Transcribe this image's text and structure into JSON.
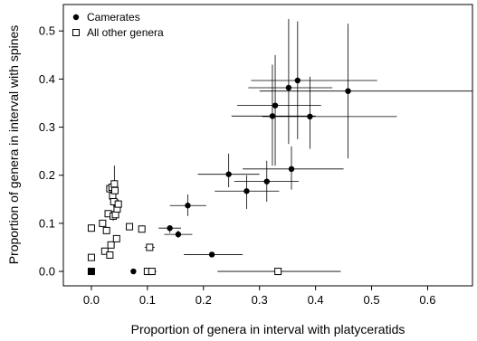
{
  "chart_data": {
    "type": "scatter",
    "xlabel": "Proportion of genera in interval with platyceratids",
    "ylabel": "Proportion of genera in interval with spines",
    "xlim": [
      -0.05,
      0.68
    ],
    "ylim": [
      -0.03,
      0.555
    ],
    "x_ticks": [
      0.0,
      0.1,
      0.2,
      0.3,
      0.4,
      0.5,
      0.6
    ],
    "x_tick_labels": [
      "0.0",
      "0.1",
      "0.2",
      "0.3",
      "0.4",
      "0.5",
      "0.6"
    ],
    "y_ticks": [
      0.0,
      0.1,
      0.2,
      0.3,
      0.4,
      0.5
    ],
    "y_tick_labels": [
      "0.0",
      "0.1",
      "0.2",
      "0.3",
      "0.4",
      "0.5"
    ],
    "grid": false,
    "legend_position": "top-left",
    "series": [
      {
        "name": "Camerates",
        "marker": "filled-circle",
        "color": "#000000",
        "points": [
          {
            "x": 0.075,
            "y": 0.0,
            "xerr": [
              0.075,
              0.075
            ],
            "yerr": [
              0.0,
              0.0
            ]
          },
          {
            "x": 0.14,
            "y": 0.09,
            "xerr": [
              0.12,
              0.16
            ],
            "yerr": [
              0.08,
              0.095
            ]
          },
          {
            "x": 0.155,
            "y": 0.077,
            "xerr": [
              0.13,
              0.18
            ],
            "yerr": [
              0.07,
              0.085
            ]
          },
          {
            "x": 0.172,
            "y": 0.137,
            "xerr": [
              0.14,
              0.205
            ],
            "yerr": [
              0.115,
              0.16
            ]
          },
          {
            "x": 0.215,
            "y": 0.035,
            "xerr": [
              0.165,
              0.27
            ],
            "yerr": [
              0.03,
              0.04
            ]
          },
          {
            "x": 0.245,
            "y": 0.202,
            "xerr": [
              0.19,
              0.3
            ],
            "yerr": [
              0.175,
              0.245
            ]
          },
          {
            "x": 0.277,
            "y": 0.167,
            "xerr": [
              0.22,
              0.335
            ],
            "yerr": [
              0.13,
              0.2
            ]
          },
          {
            "x": 0.313,
            "y": 0.187,
            "xerr": [
              0.255,
              0.37
            ],
            "yerr": [
              0.145,
              0.23
            ]
          },
          {
            "x": 0.323,
            "y": 0.323,
            "xerr": [
              0.25,
              0.4
            ],
            "yerr": [
              0.22,
              0.43
            ]
          },
          {
            "x": 0.328,
            "y": 0.345,
            "xerr": [
              0.26,
              0.41
            ],
            "yerr": [
              0.22,
              0.45
            ]
          },
          {
            "x": 0.352,
            "y": 0.382,
            "xerr": [
              0.28,
              0.43
            ],
            "yerr": [
              0.265,
              0.525
            ]
          },
          {
            "x": 0.357,
            "y": 0.213,
            "xerr": [
              0.27,
              0.45
            ],
            "yerr": [
              0.17,
              0.26
            ]
          },
          {
            "x": 0.368,
            "y": 0.397,
            "xerr": [
              0.285,
              0.51
            ],
            "yerr": [
              0.275,
              0.52
            ]
          },
          {
            "x": 0.39,
            "y": 0.322,
            "xerr": [
              0.305,
              0.545
            ],
            "yerr": [
              0.255,
              0.405
            ]
          },
          {
            "x": 0.458,
            "y": 0.375,
            "xerr": [
              0.3,
              0.68
            ],
            "yerr": [
              0.235,
              0.515
            ]
          }
        ]
      },
      {
        "name": "All other genera",
        "marker": "open-square",
        "color": "#000000",
        "points": [
          {
            "x": 0.0,
            "y": 0.0,
            "xerr": [
              0.0,
              0.0
            ],
            "yerr": [
              0.0,
              0.0
            ],
            "filled": true
          },
          {
            "x": 0.0,
            "y": 0.029,
            "xerr": [
              0.0,
              0.0
            ],
            "yerr": [
              0.025,
              0.035
            ]
          },
          {
            "x": 0.0,
            "y": 0.09,
            "xerr": [
              0.0,
              0.0
            ],
            "yerr": [
              0.085,
              0.098
            ]
          },
          {
            "x": 0.02,
            "y": 0.1,
            "xerr": [
              0.02,
              0.02
            ],
            "yerr": [
              0.095,
              0.105
            ]
          },
          {
            "x": 0.024,
            "y": 0.042,
            "xerr": [
              0.02,
              0.028
            ],
            "yerr": [
              0.038,
              0.046
            ]
          },
          {
            "x": 0.027,
            "y": 0.085,
            "xerr": [
              0.024,
              0.03
            ],
            "yerr": [
              0.08,
              0.09
            ]
          },
          {
            "x": 0.03,
            "y": 0.12,
            "xerr": [
              0.027,
              0.033
            ],
            "yerr": [
              0.115,
              0.125
            ]
          },
          {
            "x": 0.033,
            "y": 0.034,
            "xerr": [
              0.03,
              0.036
            ],
            "yerr": [
              0.03,
              0.038
            ]
          },
          {
            "x": 0.035,
            "y": 0.055,
            "xerr": [
              0.032,
              0.038
            ],
            "yerr": [
              0.05,
              0.06
            ]
          },
          {
            "x": 0.033,
            "y": 0.172,
            "xerr": [
              0.03,
              0.036
            ],
            "yerr": [
              0.162,
              0.182
            ]
          },
          {
            "x": 0.037,
            "y": 0.175,
            "xerr": [
              0.034,
              0.04
            ],
            "yerr": [
              0.165,
              0.185
            ]
          },
          {
            "x": 0.038,
            "y": 0.157,
            "xerr": [
              0.035,
              0.041
            ],
            "yerr": [
              0.145,
              0.17
            ]
          },
          {
            "x": 0.039,
            "y": 0.115,
            "xerr": [
              0.036,
              0.042
            ],
            "yerr": [
              0.105,
              0.125
            ]
          },
          {
            "x": 0.04,
            "y": 0.145,
            "xerr": [
              0.037,
              0.043
            ],
            "yerr": [
              0.133,
              0.158
            ]
          },
          {
            "x": 0.041,
            "y": 0.182,
            "xerr": [
              0.038,
              0.044
            ],
            "yerr": [
              0.16,
              0.22
            ]
          },
          {
            "x": 0.042,
            "y": 0.168,
            "xerr": [
              0.039,
              0.045
            ],
            "yerr": [
              0.155,
              0.18
            ]
          },
          {
            "x": 0.043,
            "y": 0.118,
            "xerr": [
              0.04,
              0.046
            ],
            "yerr": [
              0.108,
              0.128
            ]
          },
          {
            "x": 0.045,
            "y": 0.068,
            "xerr": [
              0.042,
              0.048
            ],
            "yerr": [
              0.063,
              0.073
            ]
          },
          {
            "x": 0.046,
            "y": 0.13,
            "xerr": [
              0.043,
              0.049
            ],
            "yerr": [
              0.12,
              0.14
            ]
          },
          {
            "x": 0.048,
            "y": 0.14,
            "xerr": [
              0.045,
              0.051
            ],
            "yerr": [
              0.13,
              0.15
            ]
          },
          {
            "x": 0.068,
            "y": 0.093,
            "xerr": [
              0.064,
              0.072
            ],
            "yerr": [
              0.088,
              0.098
            ]
          },
          {
            "x": 0.09,
            "y": 0.088,
            "xerr": [
              0.085,
              0.095
            ],
            "yerr": [
              0.083,
              0.093
            ]
          },
          {
            "x": 0.1,
            "y": 0.0,
            "xerr": [
              0.094,
              0.106
            ],
            "yerr": [
              0.0,
              0.0
            ]
          },
          {
            "x": 0.108,
            "y": 0.0,
            "xerr": [
              0.1,
              0.116
            ],
            "yerr": [
              0.0,
              0.0
            ]
          },
          {
            "x": 0.104,
            "y": 0.05,
            "xerr": [
              0.095,
              0.113
            ],
            "yerr": [
              0.045,
              0.055
            ]
          },
          {
            "x": 0.333,
            "y": 0.0,
            "xerr": [
              0.225,
              0.445
            ],
            "yerr": [
              0.0,
              0.0
            ]
          }
        ]
      }
    ]
  }
}
